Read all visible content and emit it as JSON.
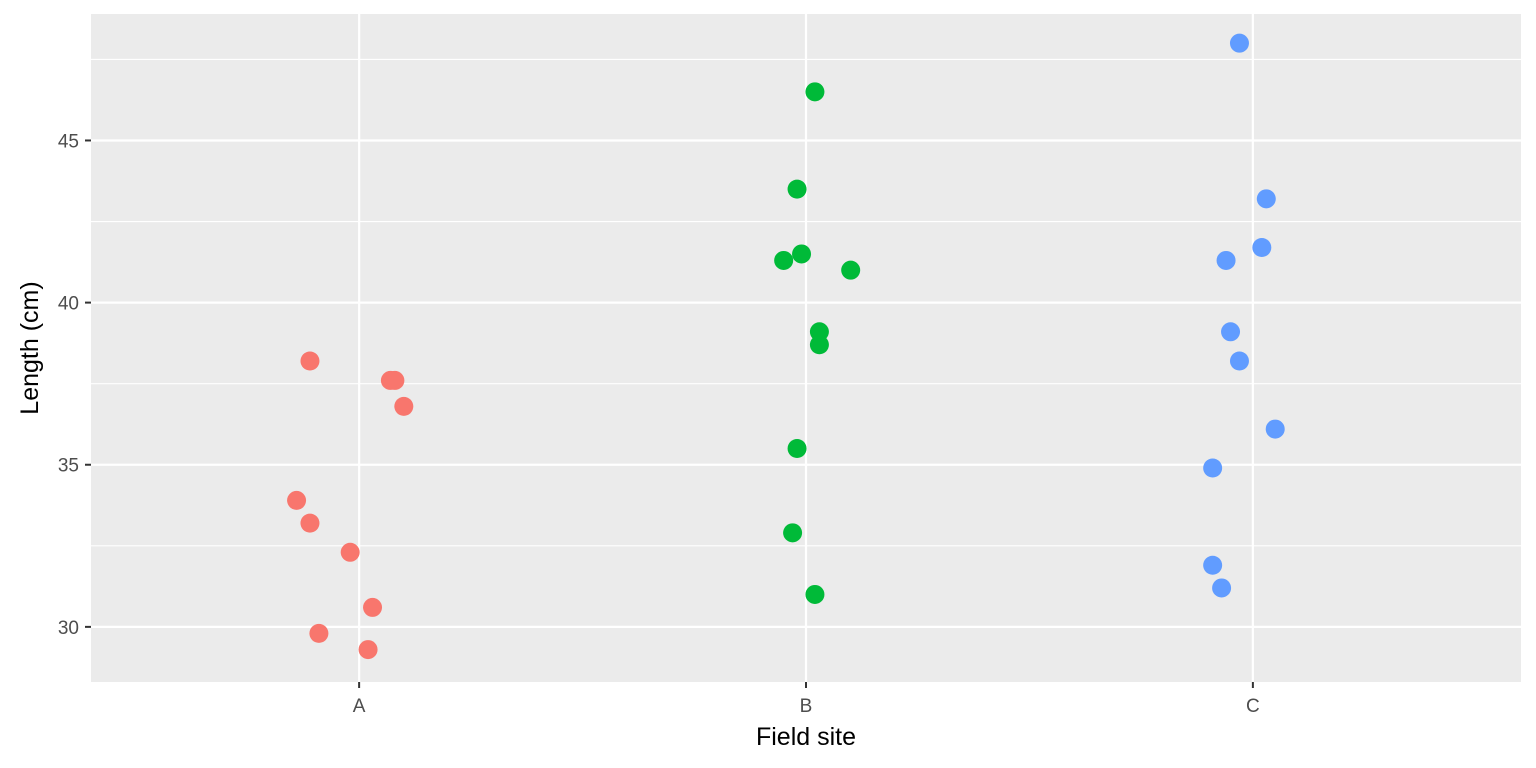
{
  "chart_data": {
    "type": "scatter",
    "title": "",
    "xlabel": "Field site",
    "ylabel": "Length (cm)",
    "categories": [
      "A",
      "B",
      "C"
    ],
    "x_range": [
      0.4,
      3.6
    ],
    "ylim": [
      28.3,
      48.9
    ],
    "y_ticks": [
      30,
      35,
      40,
      45
    ],
    "grid": true,
    "legend": "none",
    "colors": {
      "panel": "#ebebeb",
      "grid": "#ffffff",
      "axis_ticks": "#333333",
      "A": "#f8766d",
      "B": "#00ba38",
      "C": "#619cff"
    },
    "series": [
      {
        "category": "A",
        "points": [
          {
            "x": 0.89,
            "y": 38.2
          },
          {
            "x": 1.07,
            "y": 37.6
          },
          {
            "x": 1.08,
            "y": 37.6
          },
          {
            "x": 1.1,
            "y": 36.8
          },
          {
            "x": 0.86,
            "y": 33.9
          },
          {
            "x": 0.89,
            "y": 33.2
          },
          {
            "x": 0.98,
            "y": 32.3
          },
          {
            "x": 1.03,
            "y": 30.6
          },
          {
            "x": 0.91,
            "y": 29.8
          },
          {
            "x": 1.02,
            "y": 29.3
          }
        ]
      },
      {
        "category": "B",
        "points": [
          {
            "x": 2.02,
            "y": 46.5
          },
          {
            "x": 1.98,
            "y": 43.5
          },
          {
            "x": 1.99,
            "y": 41.5
          },
          {
            "x": 1.95,
            "y": 41.3
          },
          {
            "x": 2.1,
            "y": 41.0
          },
          {
            "x": 2.03,
            "y": 39.1
          },
          {
            "x": 2.03,
            "y": 38.7
          },
          {
            "x": 1.98,
            "y": 35.5
          },
          {
            "x": 1.97,
            "y": 32.9
          },
          {
            "x": 2.02,
            "y": 31.0
          }
        ]
      },
      {
        "category": "C",
        "points": [
          {
            "x": 2.97,
            "y": 48.0
          },
          {
            "x": 3.03,
            "y": 43.2
          },
          {
            "x": 3.02,
            "y": 41.7
          },
          {
            "x": 2.94,
            "y": 41.3
          },
          {
            "x": 2.95,
            "y": 39.1
          },
          {
            "x": 2.97,
            "y": 38.2
          },
          {
            "x": 3.05,
            "y": 36.1
          },
          {
            "x": 2.91,
            "y": 34.9
          },
          {
            "x": 2.91,
            "y": 31.9
          },
          {
            "x": 2.93,
            "y": 31.2
          }
        ]
      }
    ]
  }
}
